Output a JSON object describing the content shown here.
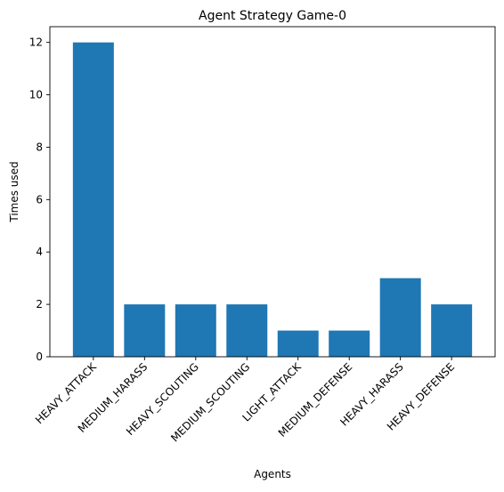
{
  "chart_data": {
    "type": "bar",
    "title": "Agent Strategy Game-0",
    "xlabel": "Agents",
    "ylabel": "Times used",
    "categories": [
      "HEAVY_ATTACK",
      "MEDIUM_HARASS",
      "HEAVY_SCOUTING",
      "MEDIUM_SCOUTING",
      "LIGHT_ATTACK",
      "MEDIUM_DEFENSE",
      "HEAVY_HARASS",
      "HEAVY_DEFENSE"
    ],
    "values": [
      12,
      2,
      2,
      2,
      1,
      1,
      3,
      2
    ],
    "ylim": [
      0,
      12.6
    ],
    "yticks": [
      0,
      2,
      4,
      6,
      8,
      10,
      12
    ],
    "bar_color": "#1f77b4",
    "grid": false,
    "legend": "none"
  }
}
